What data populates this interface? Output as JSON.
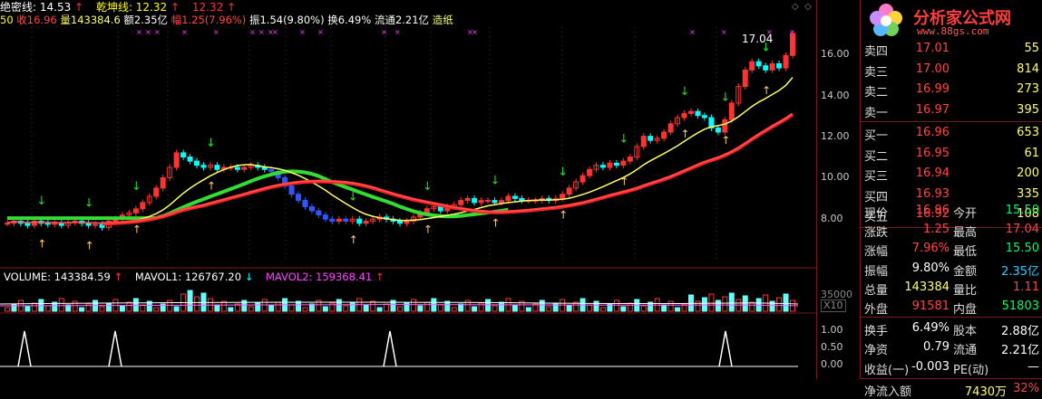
{
  "header": {
    "line1": [
      {
        "text": "绝密线: 14.53",
        "color": "#ffffff"
      },
      {
        "text": "↑",
        "color": "#ff3333"
      },
      {
        "text": "乾坤线: 12.32",
        "color": "#ffff00"
      },
      {
        "text": "↑",
        "color": "#ff3333"
      },
      {
        "text": "12.32",
        "color": "#ff3333"
      },
      {
        "text": "↑",
        "color": "#ff3333"
      }
    ],
    "line2": [
      {
        "text": "50",
        "color": "#ffff00"
      },
      {
        "text": "收16.96",
        "color": "#ff4444"
      },
      {
        "text": "量143384.6",
        "color": "#ffff66"
      },
      {
        "text": "额2.35亿",
        "color": "#ffffff"
      },
      {
        "text": "幅1.25(7.96%)",
        "color": "#ff4444"
      },
      {
        "text": "振1.54(9.80%)",
        "color": "#ffffff"
      },
      {
        "text": "换6.49%",
        "color": "#ffffff"
      },
      {
        "text": "流通2.21亿",
        "color": "#ffffff"
      },
      {
        "text": "造纸",
        "color": "#ffff66"
      }
    ],
    "max_price_label": "17.04"
  },
  "volume_header": {
    "volume": "VOLUME: 143384.59",
    "mavol1": "MAVOL1: 126767.20",
    "mavol2": "MAVOL2: 159368.41",
    "arrow_up": "↑",
    "arrow_down": "↓"
  },
  "price_axis": [
    "16.00",
    "14.00",
    "12.00",
    "10.00",
    "8.00"
  ],
  "volume_axis": {
    "top": "35000",
    "unit": "X10"
  },
  "signal_axis": [
    "1.00",
    "0.50",
    "0.00"
  ],
  "logo": {
    "title": "分析家公式网",
    "url": "www.88gs.com"
  },
  "colors": {
    "up": "#ff3333",
    "down": "#00ffff",
    "ma_white": "#ffffff",
    "ma_yellow": "#ffff66",
    "ma_red": "#ff2222",
    "ma_green": "#33dd33",
    "border": "#7a1a1a"
  },
  "sell_orders": [
    {
      "label": "卖四",
      "price": "17.01",
      "vol": "55"
    },
    {
      "label": "卖三",
      "price": "17.00",
      "vol": "814"
    },
    {
      "label": "卖二",
      "price": "16.99",
      "vol": "273"
    },
    {
      "label": "卖一",
      "price": "16.97",
      "vol": "395"
    }
  ],
  "buy_orders": [
    {
      "label": "买一",
      "price": "16.96",
      "vol": "653"
    },
    {
      "label": "买二",
      "price": "16.95",
      "vol": "61"
    },
    {
      "label": "买三",
      "price": "16.94",
      "vol": "200"
    },
    {
      "label": "买四",
      "price": "16.93",
      "vol": "335"
    },
    {
      "label": "买五",
      "price": "16.92",
      "vol": "108"
    }
  ],
  "stats": [
    {
      "l1": "现价",
      "v1": "16.96",
      "c1": "#ff4444",
      "l2": "今开",
      "v2": "15.50",
      "c2": "#00ff66"
    },
    {
      "l1": "涨跌",
      "v1": "1.25",
      "c1": "#ff4444",
      "l2": "最高",
      "v2": "17.04",
      "c2": "#ff4444"
    },
    {
      "l1": "涨幅",
      "v1": "7.96%",
      "c1": "#ff4444",
      "l2": "最低",
      "v2": "15.50",
      "c2": "#00ff66"
    },
    {
      "l1": "振幅",
      "v1": "9.80%",
      "c1": "#ffffff",
      "l2": "金额",
      "v2": "2.35亿",
      "c2": "#33ccff"
    },
    {
      "l1": "总量",
      "v1": "143384",
      "c1": "#ffff66",
      "l2": "量比",
      "v2": "1.11",
      "c2": "#ff4444"
    },
    {
      "l1": "外盘",
      "v1": "91581",
      "c1": "#ff4444",
      "l2": "内盘",
      "v2": "51803",
      "c2": "#00ff66"
    },
    {
      "l1": "换手",
      "v1": "6.49%",
      "c1": "#ffffff",
      "l2": "股本",
      "v2": "2.88亿",
      "c2": "#ffffff"
    },
    {
      "l1": "净资",
      "v1": "0.79",
      "c1": "#ffffff",
      "l2": "流通",
      "v2": "2.21亿",
      "c2": "#ffffff"
    },
    {
      "l1": "收益(一)",
      "v1": "-0.003",
      "c1": "#ffffff",
      "l2": "PE(动)",
      "v2": "—",
      "c2": "#ffffff"
    }
  ],
  "net_flow": {
    "label": "净流入额",
    "value": "7430万",
    "pct": "32%"
  }
}
